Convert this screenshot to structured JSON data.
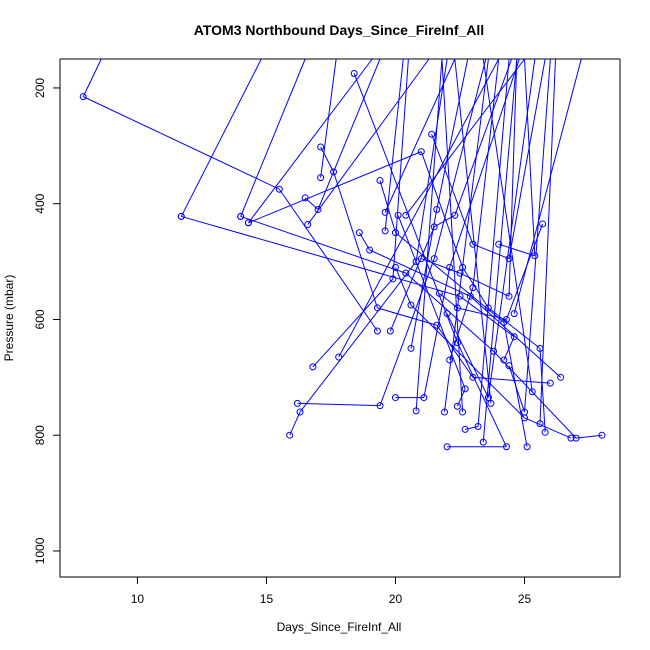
{
  "chart_data": {
    "type": "line",
    "title": "ATOM3 Northbound Days_Since_FireInf_All",
    "xlabel": "Days_Since_FireInf_All",
    "ylabel": "Pressure (mbar)",
    "xlim": [
      7,
      28.7
    ],
    "ylim": [
      1045,
      150
    ],
    "y_axis_inverted": true,
    "x_ticks": [
      10,
      15,
      20,
      25
    ],
    "y_ticks": [
      200,
      400,
      600,
      800,
      1000
    ],
    "grid": false,
    "legend": "none",
    "marker": "open-circle",
    "colors": {
      "series": "#0000ff",
      "text": "#000000",
      "axis": "#000000"
    },
    "profiles": [
      {
        "points": [
          [
            8.6,
            150
          ],
          [
            7.9,
            215
          ],
          [
            15.5,
            375
          ],
          [
            19.3,
            620
          ]
        ]
      },
      {
        "points": [
          [
            11.7,
            422
          ],
          [
            14.8,
            150
          ]
        ]
      },
      {
        "points": [
          [
            11.7,
            422
          ],
          [
            22.5,
            560
          ],
          [
            24.6,
            630
          ],
          [
            24.2,
            670
          ]
        ]
      },
      {
        "points": [
          [
            14.0,
            422
          ],
          [
            16.5,
            150
          ]
        ]
      },
      {
        "points": [
          [
            14.0,
            422
          ],
          [
            20.4,
            520
          ],
          [
            23.8,
            655
          ],
          [
            27.0,
            805
          ],
          [
            28.0,
            800
          ]
        ]
      },
      {
        "points": [
          [
            14.3,
            433
          ],
          [
            19.1,
            150
          ]
        ]
      },
      {
        "points": [
          [
            14.3,
            433
          ],
          [
            21.0,
            310
          ],
          [
            22.6,
            510
          ],
          [
            23.6,
            580
          ],
          [
            25.6,
            650
          ],
          [
            25.8,
            795
          ]
        ]
      },
      {
        "points": [
          [
            15.9,
            800
          ],
          [
            16.3,
            760
          ],
          [
            20.8,
            500
          ],
          [
            22.0,
            150
          ]
        ]
      },
      {
        "points": [
          [
            16.2,
            745
          ],
          [
            19.4,
            749
          ],
          [
            21.5,
            495
          ],
          [
            23.5,
            150
          ]
        ]
      },
      {
        "points": [
          [
            16.5,
            390
          ],
          [
            17.0,
            410
          ],
          [
            19.4,
            150
          ]
        ]
      },
      {
        "points": [
          [
            16.6,
            436
          ],
          [
            21.3,
            150
          ]
        ]
      },
      {
        "points": [
          [
            16.8,
            682
          ],
          [
            19.9,
            530
          ],
          [
            20.5,
            150
          ]
        ]
      },
      {
        "points": [
          [
            17.1,
            302
          ],
          [
            17.6,
            345
          ],
          [
            19.3,
            580
          ],
          [
            21.6,
            610
          ],
          [
            23.0,
            700
          ],
          [
            26.0,
            710
          ]
        ]
      },
      {
        "points": [
          [
            17.1,
            355
          ],
          [
            17.7,
            150
          ]
        ]
      },
      {
        "points": [
          [
            17.8,
            665
          ],
          [
            24.0,
            150
          ]
        ]
      },
      {
        "points": [
          [
            18.4,
            175
          ],
          [
            22.4,
            640
          ],
          [
            24.3,
            820
          ],
          [
            22.0,
            820
          ]
        ]
      },
      {
        "points": [
          [
            18.6,
            450
          ],
          [
            19.0,
            480
          ],
          [
            22.9,
            560
          ],
          [
            26.4,
            700
          ]
        ]
      },
      {
        "points": [
          [
            19.4,
            360
          ],
          [
            20.0,
            450
          ],
          [
            24.2,
            605
          ],
          [
            25.1,
            820
          ]
        ]
      },
      {
        "points": [
          [
            19.6,
            415
          ],
          [
            22.3,
            150
          ]
        ]
      },
      {
        "points": [
          [
            19.6,
            447
          ],
          [
            20.3,
            150
          ]
        ]
      },
      {
        "points": [
          [
            19.8,
            620
          ],
          [
            21.5,
            440
          ],
          [
            22.3,
            420
          ],
          [
            24.5,
            150
          ]
        ]
      },
      {
        "points": [
          [
            20.0,
            735
          ],
          [
            21.1,
            735
          ],
          [
            22.1,
            510
          ],
          [
            24.8,
            150
          ]
        ]
      },
      {
        "points": [
          [
            20.0,
            510
          ],
          [
            20.6,
            575
          ],
          [
            25.0,
            770
          ],
          [
            26.8,
            805
          ]
        ]
      },
      {
        "points": [
          [
            20.1,
            420
          ],
          [
            22.7,
            720
          ],
          [
            22.4,
            750
          ]
        ]
      },
      {
        "points": [
          [
            20.4,
            420
          ],
          [
            25.0,
            150
          ]
        ]
      },
      {
        "points": [
          [
            20.6,
            650
          ],
          [
            21.6,
            410
          ],
          [
            22.8,
            150
          ]
        ]
      },
      {
        "points": [
          [
            20.8,
            758
          ],
          [
            21.8,
            150
          ]
        ]
      },
      {
        "points": [
          [
            21.0,
            495
          ],
          [
            22.5,
            520
          ],
          [
            24.4,
            560
          ],
          [
            24.7,
            150
          ]
        ]
      },
      {
        "points": [
          [
            21.4,
            280
          ],
          [
            23.0,
            470
          ],
          [
            24.4,
            495
          ],
          [
            25.8,
            150
          ]
        ]
      },
      {
        "points": [
          [
            21.7,
            555
          ],
          [
            22.4,
            580
          ],
          [
            24.3,
            600
          ],
          [
            25.7,
            435
          ]
        ]
      },
      {
        "points": [
          [
            21.9,
            760
          ],
          [
            23.6,
            150
          ]
        ]
      },
      {
        "points": [
          [
            22.0,
            590
          ],
          [
            23.6,
            735
          ],
          [
            25.4,
            150
          ]
        ]
      },
      {
        "points": [
          [
            22.1,
            670
          ],
          [
            23.0,
            545
          ],
          [
            24.0,
            150
          ]
        ]
      },
      {
        "points": [
          [
            22.6,
            760
          ],
          [
            21.8,
            150
          ]
        ]
      },
      {
        "points": [
          [
            22.7,
            790
          ],
          [
            23.2,
            785
          ],
          [
            24.4,
            150
          ]
        ]
      },
      {
        "points": [
          [
            23.4,
            812
          ],
          [
            24.7,
            150
          ]
        ]
      },
      {
        "points": [
          [
            23.7,
            745
          ],
          [
            22.3,
            150
          ]
        ]
      },
      {
        "points": [
          [
            24.0,
            470
          ],
          [
            25.4,
            490
          ],
          [
            25.0,
            150
          ]
        ]
      },
      {
        "points": [
          [
            24.4,
            680
          ],
          [
            25.0,
            760
          ],
          [
            26.0,
            150
          ]
        ]
      },
      {
        "points": [
          [
            25.3,
            725
          ],
          [
            23.4,
            150
          ]
        ]
      },
      {
        "points": [
          [
            25.6,
            780
          ],
          [
            26.2,
            150
          ]
        ]
      },
      {
        "points": [
          [
            24.6,
            590
          ],
          [
            27.2,
            150
          ]
        ]
      }
    ]
  }
}
